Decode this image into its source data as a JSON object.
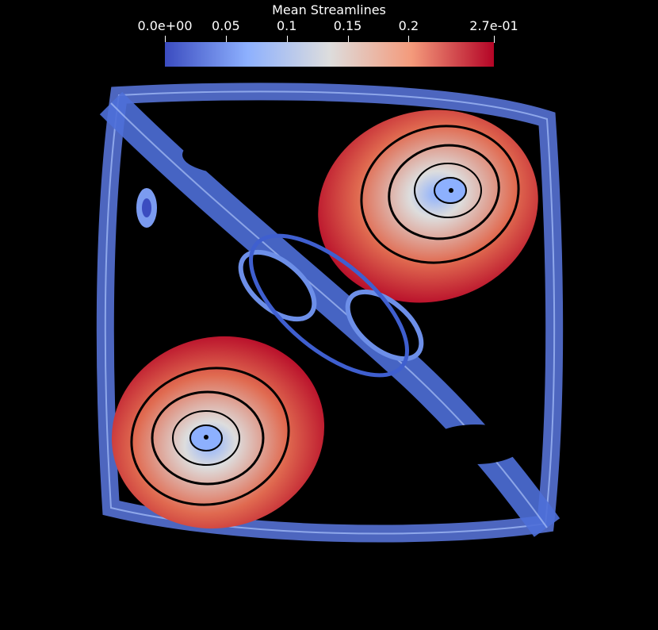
{
  "legend": {
    "title": "Mean Streamlines",
    "ticks": [
      {
        "label": "0.0e+00",
        "value": 0.0
      },
      {
        "label": "0.05",
        "value": 0.05
      },
      {
        "label": "0.1",
        "value": 0.1
      },
      {
        "label": "0.15",
        "value": 0.15
      },
      {
        "label": "0.2",
        "value": 0.2
      },
      {
        "label": "2.7e-01",
        "value": 0.27
      }
    ],
    "range": [
      0.0,
      0.27
    ],
    "colormap": [
      "#3b4cc0",
      "#8db0fe",
      "#dddddd",
      "#f49a7b",
      "#b40426"
    ]
  },
  "scene": {
    "background": "#000000"
  }
}
